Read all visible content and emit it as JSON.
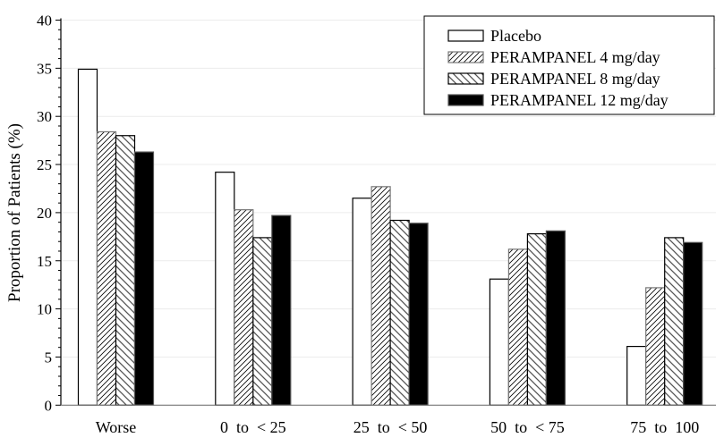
{
  "chart_data": {
    "type": "bar",
    "title": "",
    "xlabel": "",
    "ylabel": "Proportion of Patients (%)",
    "ylim": [
      0,
      40
    ],
    "yticks": [
      0,
      5,
      10,
      15,
      20,
      25,
      30,
      35,
      40
    ],
    "grid": true,
    "legend_placement": "top-right",
    "categories": [
      "Worse",
      "0  to  < 25",
      "25  to  < 50",
      "50  to  < 75",
      "75  to  100"
    ],
    "series": [
      {
        "name": "Placebo",
        "pattern": "white",
        "values": [
          34.9,
          24.2,
          21.5,
          13.1,
          6.1
        ]
      },
      {
        "name": "PERAMPANEL 4 mg/day",
        "pattern": "forward-hatch",
        "values": [
          28.4,
          20.3,
          22.7,
          16.2,
          12.2
        ]
      },
      {
        "name": "PERAMPANEL 8 mg/day",
        "pattern": "back-hatch",
        "values": [
          28.0,
          17.4,
          19.2,
          17.8,
          17.4
        ]
      },
      {
        "name": "PERAMPANEL 12 mg/day",
        "pattern": "black",
        "values": [
          26.3,
          19.7,
          18.9,
          18.1,
          16.9
        ]
      }
    ]
  }
}
